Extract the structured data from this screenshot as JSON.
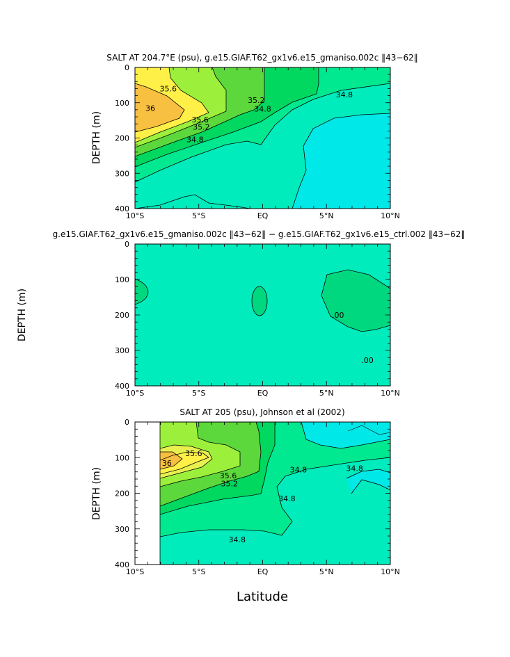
{
  "chart_data": [
    {
      "type": "contour",
      "title": "SALT AT 204.7°E (psu), g.e15.GIAF.T62_gx1v6.e15_gmaniso.002c ‖43−62‖",
      "ylabel": "DEPTH (m)",
      "xlabel": "",
      "xlim": [
        -10,
        10
      ],
      "ylim": [
        0,
        400
      ],
      "y_inverted": true,
      "x_ticks": [
        "10°S",
        "5°S",
        "EQ",
        "5°N",
        "10°N"
      ],
      "y_ticks": [
        "0",
        "100",
        "200",
        "300",
        "400"
      ],
      "fill_colors": {
        "34.6": "#00e8e8",
        "34.8": "#00ecbc",
        "35.0": "#00e890",
        "35.2": "#00d860",
        "35.4": "#5cd83c",
        "35.6": "#9cf03c",
        "35.8": "#e8f050",
        "36.0": "#fff048",
        "36.2": "#f8c040"
      },
      "contour_labels": [
        {
          "text": "35.6",
          "lat": -7.4,
          "depth": 60
        },
        {
          "text": "36",
          "lat": -8.8,
          "depth": 115
        },
        {
          "text": "35.6",
          "lat": -4.9,
          "depth": 148
        },
        {
          "text": "35.2",
          "lat": -4.8,
          "depth": 168
        },
        {
          "text": "34.8",
          "lat": -5.3,
          "depth": 204
        },
        {
          "text": "35.2",
          "lat": -0.5,
          "depth": 93
        },
        {
          "text": "34.8",
          "lat": 0.0,
          "depth": 117
        },
        {
          "text": "34.8",
          "lat": 6.4,
          "depth": 77
        }
      ]
    },
    {
      "type": "contour",
      "title": "g.e15.GIAF.T62_gx1v6.e15_gmaniso.002c ‖43−62‖ − g.e15.GIAF.T62_gx1v6.e15_ctrl.002 ‖43−62‖",
      "ylabel": "DEPTH (m)",
      "xlabel": "",
      "xlim": [
        -10,
        10
      ],
      "ylim": [
        0,
        400
      ],
      "y_inverted": true,
      "x_ticks": [
        "10°S",
        "5°S",
        "EQ",
        "5°N",
        "10°N"
      ],
      "y_ticks": [
        "0",
        "100",
        "200",
        "300",
        "400"
      ],
      "contour_labels": [
        {
          "text": ".00",
          "lat": 5.9,
          "depth": 200
        },
        {
          "text": ".00",
          "lat": 8.2,
          "depth": 327
        }
      ]
    },
    {
      "type": "contour",
      "title": "SALT AT 205 (psu), Johnson et al (2002)",
      "ylabel": "DEPTH (m)",
      "xlabel": "Latitude",
      "xlim": [
        -10,
        10
      ],
      "ylim": [
        0,
        400
      ],
      "y_inverted": true,
      "x_ticks": [
        "10°S",
        "5°S",
        "EQ",
        "5°N",
        "10°N"
      ],
      "y_ticks": [
        "0",
        "100",
        "200",
        "300",
        "400"
      ],
      "contour_labels": [
        {
          "text": "35.6",
          "lat": -5.4,
          "depth": 88
        },
        {
          "text": "36",
          "lat": -7.5,
          "depth": 115
        },
        {
          "text": "35.6",
          "lat": -2.7,
          "depth": 150
        },
        {
          "text": "35.2",
          "lat": -2.6,
          "depth": 173
        },
        {
          "text": "34.8",
          "lat": 2.8,
          "depth": 134
        },
        {
          "text": "34.8",
          "lat": 7.2,
          "depth": 130
        },
        {
          "text": "34.8",
          "lat": 1.9,
          "depth": 215
        },
        {
          "text": "34.8",
          "lat": -2.0,
          "depth": 330
        }
      ]
    }
  ]
}
